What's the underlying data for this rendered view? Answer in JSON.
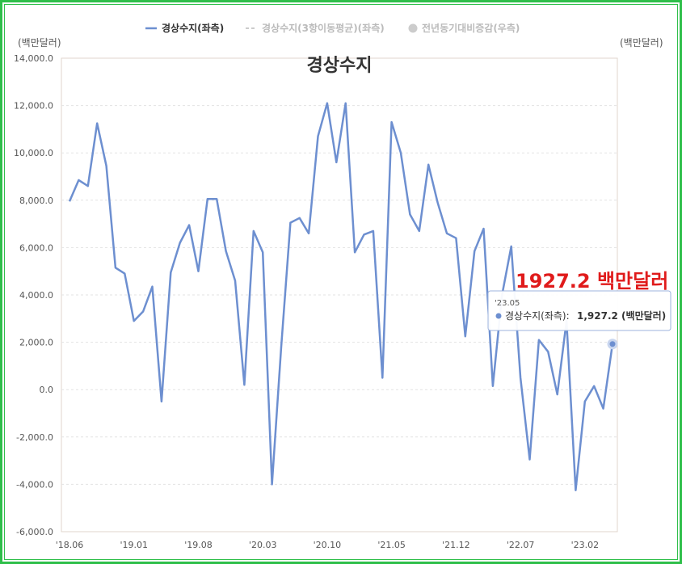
{
  "legend": [
    {
      "label": "경상수지(좌측)",
      "color": "#6d8fd0",
      "style": "solid"
    },
    {
      "label": "경상수지(3항이동평균)(좌측)",
      "color": "#cccccc",
      "style": "dashed"
    },
    {
      "label": "전년동기대비증감(우측)",
      "color": "#cccccc",
      "style": "dot"
    }
  ],
  "left_unit": "(백만달러)",
  "right_unit": "(백만달러)",
  "annotation": "1927.2 백만달러",
  "tooltip": {
    "date": "'23.05",
    "series": "경상수지(좌측):",
    "value": "1,927.2 (백만달러)"
  },
  "colors": {
    "line": "#6d8fd0",
    "annotation": "#e01b1b",
    "frame": "#2fbf4a"
  },
  "chart_data": {
    "type": "line",
    "title": "경상수지",
    "ylim": [
      -6000,
      14000
    ],
    "yticks": [
      "14,000.0",
      "12,000.0",
      "10,000.0",
      "8,000.0",
      "6,000.0",
      "4,000.0",
      "2,000.0",
      "0.0",
      "-2,000.0",
      "-4,000.0",
      "-6,000.0"
    ],
    "xticks": [
      "'18.06",
      "'19.01",
      "'19.08",
      "'20.03",
      "'20.10",
      "'21.05",
      "'21.12",
      "'22.07",
      "'23.02"
    ],
    "x": [
      "2018-06",
      "2018-07",
      "2018-08",
      "2018-09",
      "2018-10",
      "2018-11",
      "2018-12",
      "2019-01",
      "2019-02",
      "2019-03",
      "2019-04",
      "2019-05",
      "2019-06",
      "2019-07",
      "2019-08",
      "2019-09",
      "2019-10",
      "2019-11",
      "2019-12",
      "2020-01",
      "2020-02",
      "2020-03",
      "2020-04",
      "2020-05",
      "2020-06",
      "2020-07",
      "2020-08",
      "2020-09",
      "2020-10",
      "2020-11",
      "2020-12",
      "2021-01",
      "2021-02",
      "2021-03",
      "2021-04",
      "2021-05",
      "2021-06",
      "2021-07",
      "2021-08",
      "2021-09",
      "2021-10",
      "2021-11",
      "2021-12",
      "2022-01",
      "2022-02",
      "2022-03",
      "2022-04",
      "2022-05",
      "2022-06",
      "2022-07",
      "2022-08",
      "2022-09",
      "2022-10",
      "2022-11",
      "2022-12",
      "2023-01",
      "2023-02",
      "2023-03",
      "2023-04",
      "2023-05"
    ],
    "series": [
      {
        "name": "경상수지(좌측)",
        "values": [
          7950,
          8850,
          8600,
          11250,
          9450,
          5150,
          4900,
          2900,
          3300,
          4350,
          -500,
          4950,
          6200,
          6950,
          5000,
          8050,
          8050,
          5850,
          4600,
          200,
          6700,
          5800,
          -4000,
          1800,
          7050,
          7250,
          6600,
          10700,
          12100,
          9600,
          12100,
          5800,
          6550,
          6700,
          500,
          11300,
          10000,
          7400,
          6700,
          9500,
          7900,
          6600,
          6400,
          2250,
          5850,
          6800,
          150,
          4000,
          6050,
          500,
          -2950,
          2100,
          1600,
          -200,
          2900,
          -4250,
          -500,
          150,
          -800,
          1927.2
        ]
      }
    ]
  }
}
